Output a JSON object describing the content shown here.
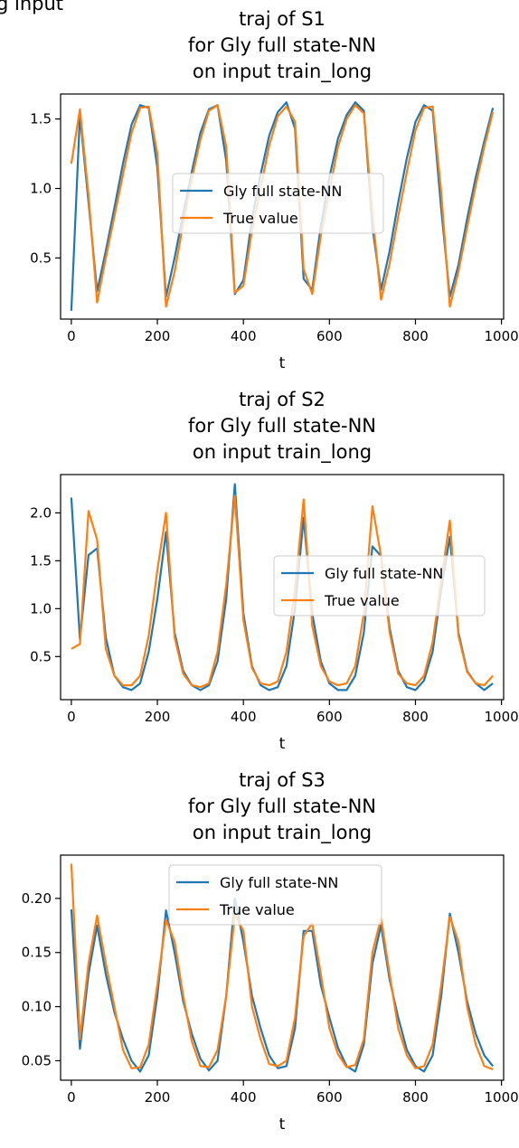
{
  "header_fragment": "g input",
  "colors": {
    "predicted": "#1f77b4",
    "true": "#ff7f0e"
  },
  "chart_data": [
    {
      "type": "line",
      "title": [
        "traj of S1",
        "for Gly full state-NN",
        "on input train_long"
      ],
      "xlabel": "t",
      "ylabel": "",
      "xlim": [
        -25,
        1005
      ],
      "ylim": [
        0.06,
        1.68
      ],
      "xticks": [
        0,
        200,
        400,
        600,
        800,
        1000
      ],
      "xtick_labels": [
        "0",
        "200",
        "400",
        "600",
        "800",
        "1000"
      ],
      "yticks": [
        0.5,
        1.0,
        1.5
      ],
      "ytick_labels": [
        "0.5",
        "1.0",
        "1.5"
      ],
      "legend": "center",
      "x": [
        0,
        20,
        40,
        60,
        80,
        100,
        120,
        140,
        160,
        180,
        200,
        220,
        240,
        260,
        280,
        300,
        320,
        340,
        360,
        380,
        400,
        420,
        440,
        460,
        480,
        500,
        520,
        540,
        560,
        580,
        600,
        620,
        640,
        660,
        680,
        700,
        720,
        740,
        760,
        780,
        800,
        820,
        840,
        860,
        880,
        900,
        920,
        940,
        960,
        980
      ],
      "series": [
        {
          "name": "Gly full state-NN",
          "values": [
            0.12,
            1.53,
            0.9,
            0.26,
            0.55,
            0.86,
            1.18,
            1.46,
            1.6,
            1.58,
            1.15,
            0.22,
            0.5,
            0.82,
            1.12,
            1.4,
            1.57,
            1.6,
            1.2,
            0.24,
            0.34,
            0.78,
            1.1,
            1.38,
            1.55,
            1.62,
            1.43,
            0.35,
            0.27,
            0.73,
            1.08,
            1.36,
            1.53,
            1.62,
            1.56,
            0.72,
            0.27,
            0.55,
            0.9,
            1.22,
            1.48,
            1.6,
            1.56,
            0.85,
            0.22,
            0.45,
            0.78,
            1.08,
            1.34,
            1.58
          ]
        },
        {
          "name": "True value",
          "values": [
            1.18,
            1.57,
            0.95,
            0.18,
            0.5,
            0.8,
            1.1,
            1.4,
            1.58,
            1.59,
            1.25,
            0.15,
            0.4,
            0.75,
            1.07,
            1.35,
            1.56,
            1.6,
            1.3,
            0.25,
            0.3,
            0.7,
            1.0,
            1.31,
            1.52,
            1.59,
            1.48,
            0.42,
            0.24,
            0.66,
            0.98,
            1.3,
            1.5,
            1.6,
            1.54,
            0.82,
            0.2,
            0.46,
            0.8,
            1.12,
            1.42,
            1.58,
            1.59,
            0.97,
            0.15,
            0.4,
            0.72,
            1.02,
            1.3,
            1.55
          ]
        }
      ]
    },
    {
      "type": "line",
      "title": [
        "traj of S2",
        "for Gly full state-NN",
        "on input train_long"
      ],
      "xlabel": "t",
      "ylabel": "",
      "xlim": [
        -25,
        1005
      ],
      "ylim": [
        0.05,
        2.4
      ],
      "xticks": [
        0,
        200,
        400,
        600,
        800,
        1000
      ],
      "xtick_labels": [
        "0",
        "200",
        "400",
        "600",
        "800",
        "1000"
      ],
      "yticks": [
        0.5,
        1.0,
        1.5,
        2.0
      ],
      "ytick_labels": [
        "0.5",
        "1.0",
        "1.5",
        "2.0"
      ],
      "legend": "center right",
      "x": [
        0,
        20,
        40,
        60,
        80,
        100,
        120,
        140,
        160,
        180,
        200,
        220,
        240,
        260,
        280,
        300,
        320,
        340,
        360,
        380,
        400,
        420,
        440,
        460,
        480,
        500,
        520,
        540,
        560,
        580,
        600,
        620,
        640,
        660,
        680,
        700,
        720,
        740,
        760,
        780,
        800,
        820,
        840,
        860,
        880,
        900,
        920,
        940,
        960,
        980
      ],
      "series": [
        {
          "name": "Gly full state-NN",
          "values": [
            2.16,
            0.68,
            1.56,
            1.63,
            0.7,
            0.3,
            0.18,
            0.15,
            0.22,
            0.55,
            1.1,
            1.8,
            0.75,
            0.35,
            0.2,
            0.15,
            0.2,
            0.45,
            1.1,
            2.3,
            0.95,
            0.4,
            0.2,
            0.15,
            0.18,
            0.4,
            1.0,
            1.95,
            0.95,
            0.45,
            0.22,
            0.15,
            0.15,
            0.3,
            0.75,
            1.65,
            1.55,
            0.8,
            0.35,
            0.18,
            0.15,
            0.25,
            0.55,
            1.2,
            1.75,
            0.75,
            0.35,
            0.22,
            0.15,
            0.22
          ]
        },
        {
          "name": "True value",
          "values": [
            0.58,
            0.63,
            2.02,
            1.72,
            0.58,
            0.3,
            0.2,
            0.2,
            0.3,
            0.72,
            1.4,
            2.0,
            0.7,
            0.32,
            0.2,
            0.18,
            0.22,
            0.55,
            1.25,
            2.18,
            0.88,
            0.38,
            0.22,
            0.2,
            0.24,
            0.55,
            1.2,
            2.14,
            0.82,
            0.4,
            0.24,
            0.2,
            0.22,
            0.4,
            0.95,
            2.07,
            1.55,
            0.75,
            0.32,
            0.22,
            0.2,
            0.3,
            0.65,
            1.3,
            1.92,
            0.72,
            0.34,
            0.22,
            0.2,
            0.3
          ]
        }
      ]
    },
    {
      "type": "line",
      "title": [
        "traj of S3",
        "for Gly full state-NN",
        "on input train_long"
      ],
      "xlabel": "t",
      "ylabel": "",
      "xlim": [
        -25,
        1005
      ],
      "ylim": [
        0.032,
        0.24
      ],
      "xticks": [
        0,
        200,
        400,
        600,
        800,
        1000
      ],
      "xtick_labels": [
        "0",
        "200",
        "400",
        "600",
        "800",
        "1000"
      ],
      "yticks": [
        0.05,
        0.1,
        0.15,
        0.2
      ],
      "ytick_labels": [
        "0.05",
        "0.10",
        "0.15",
        "0.20"
      ],
      "legend": "upper center",
      "x": [
        0,
        20,
        40,
        60,
        80,
        100,
        120,
        140,
        160,
        180,
        200,
        220,
        240,
        260,
        280,
        300,
        320,
        340,
        360,
        380,
        400,
        420,
        440,
        460,
        480,
        500,
        520,
        540,
        560,
        580,
        600,
        620,
        640,
        660,
        680,
        700,
        720,
        740,
        760,
        780,
        800,
        820,
        840,
        860,
        880,
        900,
        920,
        940,
        960,
        980
      ],
      "series": [
        {
          "name": "Gly full state-NN",
          "values": [
            0.19,
            0.061,
            0.13,
            0.175,
            0.13,
            0.095,
            0.07,
            0.05,
            0.04,
            0.055,
            0.11,
            0.189,
            0.15,
            0.105,
            0.075,
            0.052,
            0.041,
            0.05,
            0.11,
            0.2,
            0.16,
            0.11,
            0.08,
            0.055,
            0.043,
            0.045,
            0.08,
            0.17,
            0.17,
            0.12,
            0.09,
            0.062,
            0.045,
            0.04,
            0.065,
            0.14,
            0.175,
            0.125,
            0.09,
            0.06,
            0.045,
            0.04,
            0.055,
            0.11,
            0.186,
            0.15,
            0.105,
            0.075,
            0.055,
            0.045
          ]
        },
        {
          "name": "True value",
          "values": [
            0.232,
            0.07,
            0.14,
            0.184,
            0.14,
            0.1,
            0.06,
            0.043,
            0.044,
            0.065,
            0.12,
            0.18,
            0.16,
            0.11,
            0.068,
            0.045,
            0.044,
            0.06,
            0.11,
            0.185,
            0.17,
            0.1,
            0.07,
            0.047,
            0.045,
            0.05,
            0.09,
            0.165,
            0.177,
            0.13,
            0.08,
            0.056,
            0.044,
            0.046,
            0.07,
            0.15,
            0.182,
            0.13,
            0.08,
            0.055,
            0.043,
            0.045,
            0.065,
            0.12,
            0.183,
            0.16,
            0.1,
            0.065,
            0.045,
            0.042
          ]
        }
      ]
    }
  ]
}
